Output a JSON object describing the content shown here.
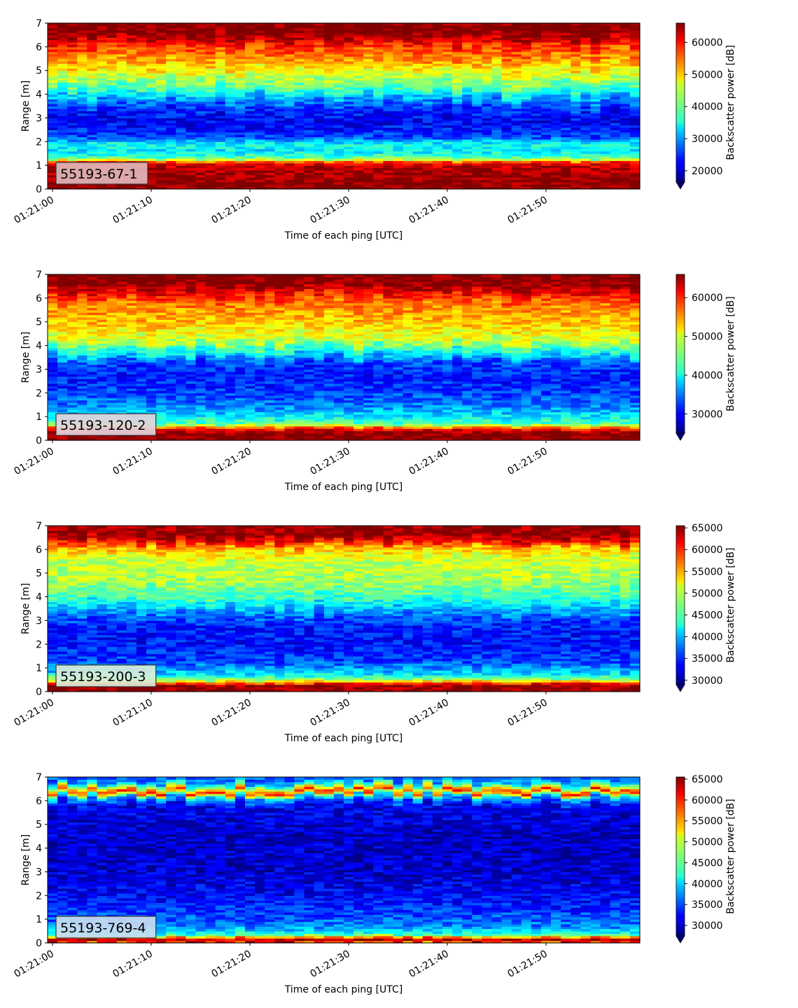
{
  "chart_data": [
    {
      "type": "heatmap",
      "label": "55193-67-1",
      "label_bg": "#e1b6b8",
      "xlabel": "Time of each ping [UTC]",
      "ylabel": "Range [m]",
      "x_ticks": [
        "01:21:00",
        "01:21:10",
        "01:21:20",
        "01:21:30",
        "01:21:40",
        "01:21:50"
      ],
      "x_range": [
        "01:21:00",
        "01:21:59"
      ],
      "ylim": [
        0,
        7
      ],
      "y_ticks": [
        0,
        1,
        2,
        3,
        4,
        5,
        6,
        7
      ],
      "colorbar_label": "Backscatter power [dB]",
      "colorbar_range": [
        16500,
        66000
      ],
      "colorbar_ticks": [
        20000,
        30000,
        40000,
        50000,
        60000
      ],
      "colormap": "jet",
      "colorbar_extend": "min",
      "profile": [
        {
          "range": 0.0,
          "value": 66000
        },
        {
          "range": 0.2,
          "value": 66000
        },
        {
          "range": 0.7,
          "value": 64500
        },
        {
          "range": 1.1,
          "value": 61000
        },
        {
          "range": 1.3,
          "value": 40000
        },
        {
          "range": 1.6,
          "value": 34000
        },
        {
          "range": 1.9,
          "value": 36000
        },
        {
          "range": 2.2,
          "value": 26000
        },
        {
          "range": 2.8,
          "value": 22000
        },
        {
          "range": 3.3,
          "value": 24000
        },
        {
          "range": 3.8,
          "value": 30000
        },
        {
          "range": 4.2,
          "value": 38000
        },
        {
          "range": 4.8,
          "value": 45000
        },
        {
          "range": 5.4,
          "value": 52000
        },
        {
          "range": 6.0,
          "value": 57000
        },
        {
          "range": 6.3,
          "value": 62000
        },
        {
          "range": 6.6,
          "value": 66000
        },
        {
          "range": 7.0,
          "value": 66000
        }
      ]
    },
    {
      "type": "heatmap",
      "label": "55193-120-2",
      "label_bg": "#e3d3dc",
      "xlabel": "Time of each ping [UTC]",
      "ylabel": "Range [m]",
      "x_ticks": [
        "01:21:00",
        "01:21:10",
        "01:21:20",
        "01:21:30",
        "01:21:40",
        "01:21:50"
      ],
      "x_range": [
        "01:21:00",
        "01:21:59"
      ],
      "ylim": [
        0,
        7
      ],
      "y_ticks": [
        0,
        1,
        2,
        3,
        4,
        5,
        6,
        7
      ],
      "colorbar_label": "Backscatter power [dB]",
      "colorbar_range": [
        25000,
        66000
      ],
      "colorbar_ticks": [
        30000,
        40000,
        50000,
        60000
      ],
      "colormap": "jet",
      "colorbar_extend": "min",
      "profile": [
        {
          "range": 0.0,
          "value": 66000
        },
        {
          "range": 0.3,
          "value": 66000
        },
        {
          "range": 0.5,
          "value": 60000
        },
        {
          "range": 0.7,
          "value": 44000
        },
        {
          "range": 1.0,
          "value": 40000
        },
        {
          "range": 1.5,
          "value": 35000
        },
        {
          "range": 2.2,
          "value": 32000
        },
        {
          "range": 2.8,
          "value": 31000
        },
        {
          "range": 3.3,
          "value": 33000
        },
        {
          "range": 3.7,
          "value": 40000
        },
        {
          "range": 4.2,
          "value": 48000
        },
        {
          "range": 5.0,
          "value": 53000
        },
        {
          "range": 5.8,
          "value": 56000
        },
        {
          "range": 6.3,
          "value": 62000
        },
        {
          "range": 6.6,
          "value": 66000
        },
        {
          "range": 7.0,
          "value": 66000
        }
      ]
    },
    {
      "type": "heatmap",
      "label": "55193-200-3",
      "label_bg": "#d8ecd8",
      "xlabel": "Time of each ping [UTC]",
      "ylabel": "Range [m]",
      "x_ticks": [
        "01:21:00",
        "01:21:10",
        "01:21:20",
        "01:21:30",
        "01:21:40",
        "01:21:50"
      ],
      "x_range": [
        "01:21:00",
        "01:21:59"
      ],
      "ylim": [
        0,
        7
      ],
      "y_ticks": [
        0,
        1,
        2,
        3,
        4,
        5,
        6,
        7
      ],
      "colorbar_label": "Backscatter power [dB]",
      "colorbar_range": [
        29000,
        65500
      ],
      "colorbar_ticks": [
        30000,
        35000,
        40000,
        45000,
        50000,
        55000,
        60000,
        65000
      ],
      "colormap": "jet",
      "colorbar_extend": "min",
      "profile": [
        {
          "range": 0.0,
          "value": 65500
        },
        {
          "range": 0.3,
          "value": 64000
        },
        {
          "range": 0.5,
          "value": 48000
        },
        {
          "range": 0.8,
          "value": 41000
        },
        {
          "range": 1.3,
          "value": 36000
        },
        {
          "range": 2.0,
          "value": 34000
        },
        {
          "range": 2.8,
          "value": 34500
        },
        {
          "range": 3.4,
          "value": 39000
        },
        {
          "range": 4.0,
          "value": 45000
        },
        {
          "range": 4.8,
          "value": 49000
        },
        {
          "range": 5.6,
          "value": 50000
        },
        {
          "range": 6.1,
          "value": 55000
        },
        {
          "range": 6.4,
          "value": 62000
        },
        {
          "range": 6.7,
          "value": 65500
        },
        {
          "range": 7.0,
          "value": 64000
        }
      ]
    },
    {
      "type": "heatmap",
      "label": "55193-769-4",
      "label_bg": "#c8dcf0",
      "xlabel": "Time of each ping [UTC]",
      "ylabel": "Range [m]",
      "x_ticks": [
        "01:21:00",
        "01:21:10",
        "01:21:20",
        "01:21:30",
        "01:21:40",
        "01:21:50"
      ],
      "x_range": [
        "01:21:00",
        "01:21:59"
      ],
      "ylim": [
        0,
        7
      ],
      "y_ticks": [
        0,
        1,
        2,
        3,
        4,
        5,
        6,
        7
      ],
      "colorbar_label": "Backscatter power [dB]",
      "colorbar_range": [
        27500,
        65500
      ],
      "colorbar_ticks": [
        30000,
        35000,
        40000,
        45000,
        50000,
        55000,
        60000,
        65000
      ],
      "colormap": "jet",
      "colorbar_extend": "min",
      "profile": [
        {
          "range": 0.0,
          "value": 52000
        },
        {
          "range": 0.1,
          "value": 65500
        },
        {
          "range": 0.2,
          "value": 60000
        },
        {
          "range": 0.35,
          "value": 44000
        },
        {
          "range": 0.7,
          "value": 37000
        },
        {
          "range": 1.2,
          "value": 35000
        },
        {
          "range": 2.0,
          "value": 32000
        },
        {
          "range": 3.0,
          "value": 30500
        },
        {
          "range": 4.5,
          "value": 30000
        },
        {
          "range": 5.8,
          "value": 31500
        },
        {
          "range": 6.2,
          "value": 40000
        },
        {
          "range": 6.4,
          "value": 60000
        },
        {
          "range": 6.6,
          "value": 48000
        },
        {
          "range": 6.8,
          "value": 38000
        },
        {
          "range": 7.0,
          "value": 36000
        }
      ]
    }
  ]
}
